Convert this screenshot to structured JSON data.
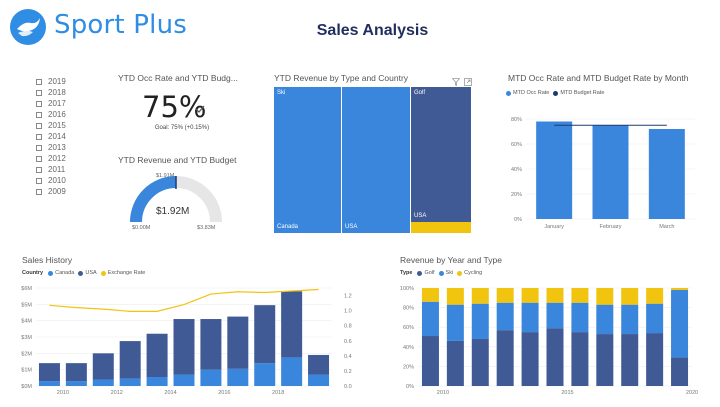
{
  "header": {
    "logo_text": "Sport Plus",
    "title": "Sales Analysis"
  },
  "slicer": {
    "years": [
      "2019",
      "2018",
      "2017",
      "2016",
      "2015",
      "2014",
      "2013",
      "2012",
      "2011",
      "2010",
      "2009"
    ]
  },
  "kpi": {
    "title": "YTD Occ Rate and YTD Budg...",
    "value": "75%",
    "goal": "Goal: 75% (+0.15%)"
  },
  "gauge": {
    "title": "YTD Revenue and YTD Budget",
    "value": "$1.92M",
    "target_label": "$1.91M",
    "min_label": "$0.00M",
    "max_label": "$3.83M",
    "value_fraction": 0.5
  },
  "treemap": {
    "title": "YTD Revenue by Type and Country",
    "labels": {
      "ski": "Ski",
      "golf": "Golf",
      "canada": "Canada",
      "usa_ski": "USA",
      "usa_golf": "USA"
    }
  },
  "mtd": {
    "title": "MTD Occ Rate and MTD Budget Rate by Month",
    "legend": [
      "MTD Occ Rate",
      "MTD Budget Rate"
    ]
  },
  "sales_history": {
    "title": "Sales History",
    "legend_title": "Country",
    "legend": [
      "Canada",
      "USA",
      "Exchange Rate"
    ]
  },
  "revenue_type": {
    "title": "Revenue by Year and Type",
    "legend_title": "Type",
    "legend": [
      "Golf",
      "Ski",
      "Cycling"
    ]
  },
  "colors": {
    "brand": "#2f8de4",
    "title": "#1f2e5c",
    "light_blue": "#3a86dc",
    "dark_blue": "#405a95",
    "navy": "#1d3a70",
    "yellow": "#f1c40f",
    "grey": "#e6e6e6"
  },
  "chart_data": [
    {
      "type": "bar",
      "title": "MTD Occ Rate and MTD Budget Rate by Month",
      "categories": [
        "January",
        "February",
        "March"
      ],
      "series": [
        {
          "name": "MTD Occ Rate",
          "values": [
            78,
            75,
            72
          ]
        },
        {
          "name": "MTD Budget Rate",
          "values": [
            75,
            75,
            75
          ]
        }
      ],
      "y_ticks": [
        "0%",
        "20%",
        "40%",
        "60%",
        "80%"
      ],
      "ylim": [
        0,
        80
      ]
    },
    {
      "type": "bar",
      "title": "Sales History",
      "x_ticks": [
        "2010",
        "2012",
        "2014",
        "2016",
        "2018"
      ],
      "x": [
        2009,
        2010,
        2011,
        2012,
        2013,
        2014,
        2015,
        2016,
        2017,
        2018,
        2019
      ],
      "series": [
        {
          "name": "Canada",
          "values": [
            0.3,
            0.3,
            0.4,
            0.45,
            0.55,
            0.7,
            1.0,
            1.05,
            1.4,
            1.75,
            0.7
          ]
        },
        {
          "name": "USA",
          "values": [
            1.1,
            1.1,
            1.6,
            2.3,
            2.65,
            3.4,
            3.1,
            3.2,
            3.55,
            4.05,
            1.2
          ]
        },
        {
          "name": "Exchange Rate",
          "values": [
            1.07,
            1.04,
            1.02,
            0.99,
            0.99,
            1.08,
            1.22,
            1.25,
            1.24,
            1.26,
            1.28
          ]
        }
      ],
      "y_ticks": [
        "$0M",
        "$1M",
        "$2M",
        "$3M",
        "$4M",
        "$5M",
        "$6M"
      ],
      "ylim": [
        0,
        6
      ],
      "y2_ticks": [
        "0.0",
        "0.2",
        "0.4",
        "0.6",
        "0.8",
        "1.0",
        "1.2"
      ],
      "y2lim": [
        0,
        1.3
      ]
    },
    {
      "type": "bar",
      "title": "Revenue by Year and Type",
      "x_ticks": [
        "2010",
        "2015",
        "2020"
      ],
      "x": [
        2009,
        2010,
        2011,
        2012,
        2013,
        2014,
        2015,
        2016,
        2017,
        2018,
        2019
      ],
      "series": [
        {
          "name": "Golf",
          "values": [
            51,
            46,
            48,
            57,
            55,
            59,
            55,
            53,
            53,
            54,
            29
          ]
        },
        {
          "name": "Ski",
          "values": [
            35,
            37,
            36,
            28,
            30,
            26,
            30,
            30,
            30,
            30,
            69
          ]
        },
        {
          "name": "Cycling",
          "values": [
            14,
            17,
            16,
            15,
            15,
            15,
            15,
            17,
            17,
            16,
            2
          ]
        }
      ],
      "y_ticks": [
        "0%",
        "20%",
        "40%",
        "60%",
        "80%",
        "100%"
      ],
      "ylim": [
        0,
        100
      ]
    }
  ]
}
